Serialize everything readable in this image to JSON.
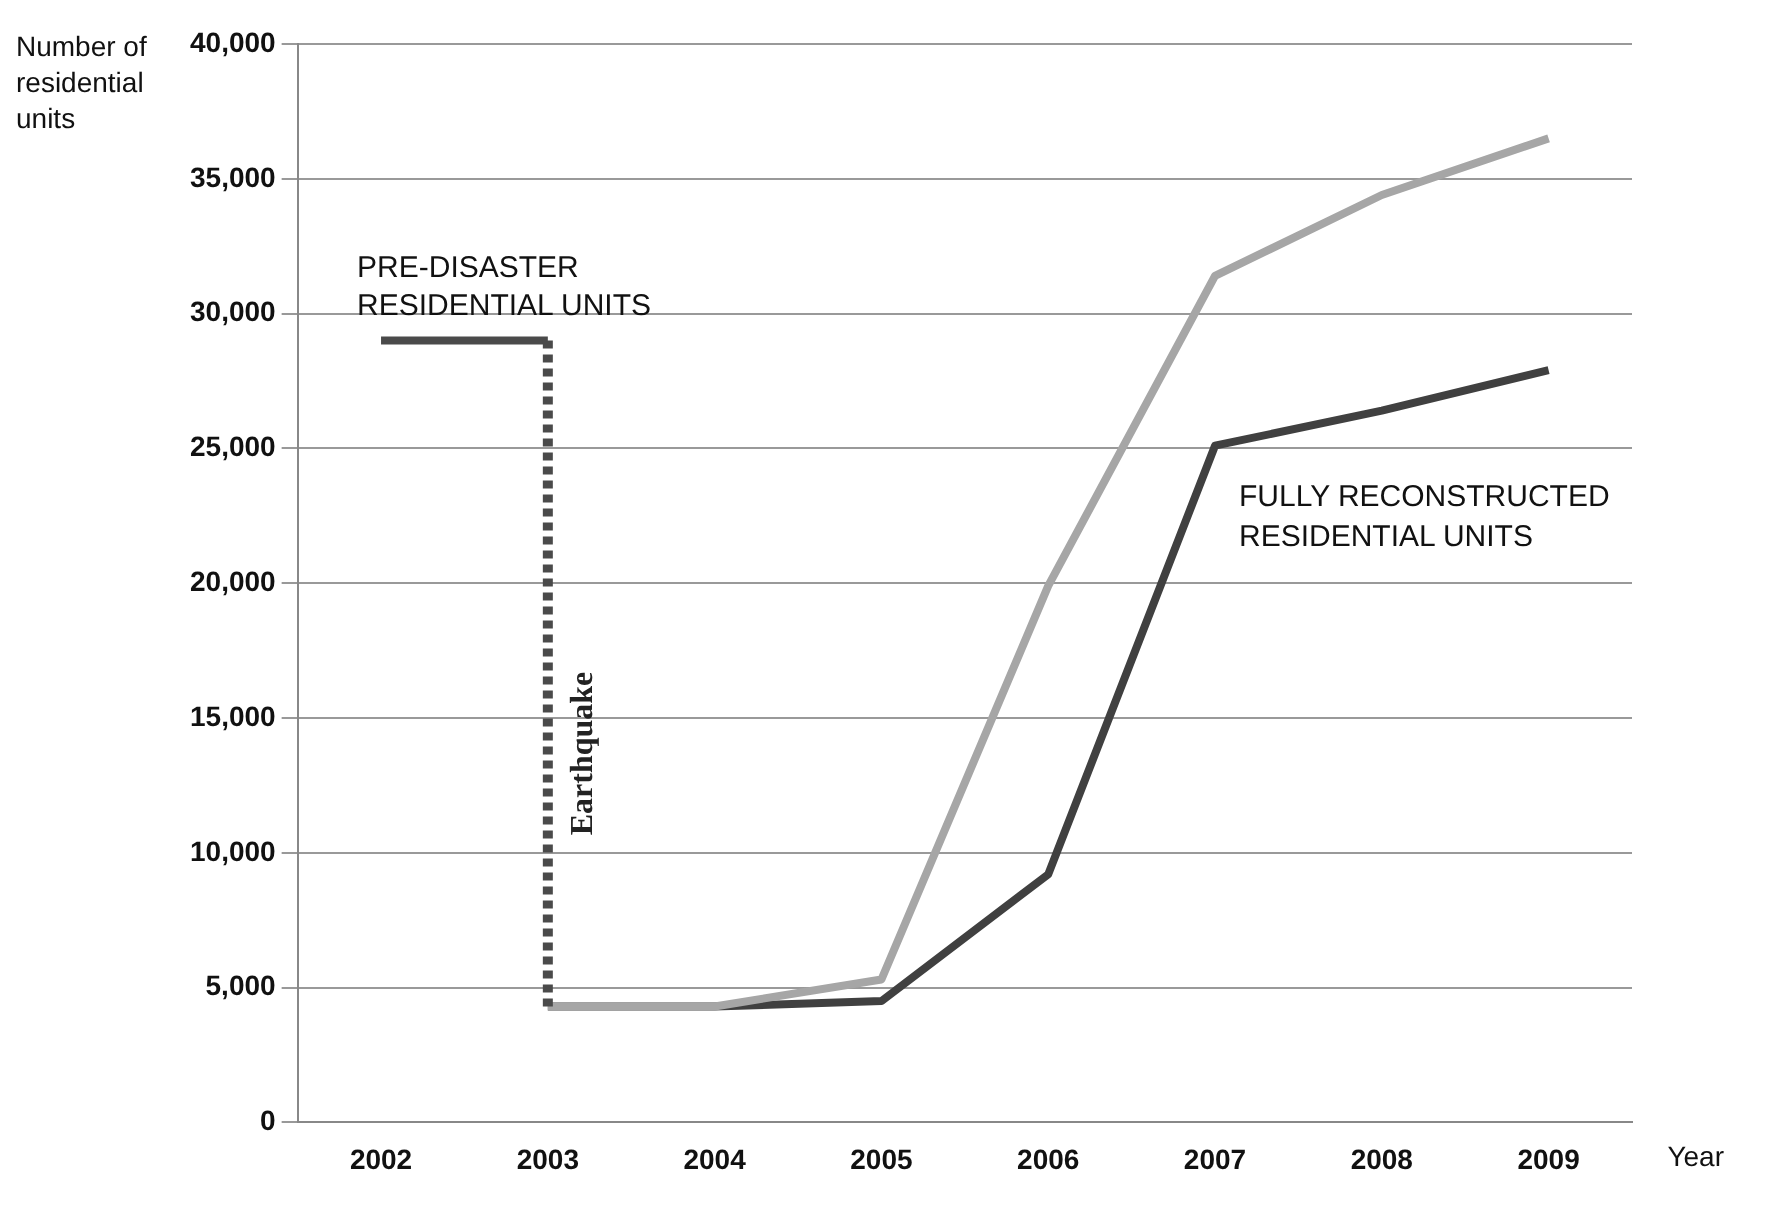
{
  "chart_data": {
    "type": "line",
    "xlabel": "Year",
    "ylabel": "Number of residential units",
    "categories": [
      "2002",
      "2003",
      "2004",
      "2005",
      "2006",
      "2007",
      "2008",
      "2009"
    ],
    "series": [
      {
        "name": "PRE-DISASTER RESIDENTIAL UNITS",
        "color": "#4a4a4a",
        "values": [
          29000,
          29000,
          null,
          null,
          null,
          null,
          null,
          null
        ]
      },
      {
        "color": "#a6a6a6",
        "values": [
          null,
          4300,
          4300,
          5300,
          19900,
          31400,
          34400,
          36500
        ]
      },
      {
        "name": "FULLY RECONSTRUCTED RESIDENTIAL UNITS",
        "color": "#404040",
        "values": [
          null,
          4300,
          4300,
          4500,
          9200,
          25100,
          26400,
          27900
        ]
      }
    ],
    "ref_lines": [
      {
        "axis": "x",
        "value": "2003",
        "label": "Earthquake",
        "line_style": "dotted",
        "color": "#4a4a4a"
      }
    ],
    "ylim": [
      0,
      40000
    ],
    "yticks": [
      0,
      {
        "value": 5000,
        "label": "5,000"
      },
      {
        "value": 10000,
        "label": "10,000"
      },
      {
        "value": 15000,
        "label": "15,000"
      },
      {
        "value": 20000,
        "label": "20,000"
      },
      {
        "value": 25000,
        "label": "25,000"
      },
      {
        "value": 30000,
        "label": "30,000"
      },
      {
        "value": 35000,
        "label": "35,000"
      },
      {
        "value": 40000,
        "label": "40,000"
      }
    ],
    "grid": "y",
    "legend": false,
    "marker": "none"
  }
}
